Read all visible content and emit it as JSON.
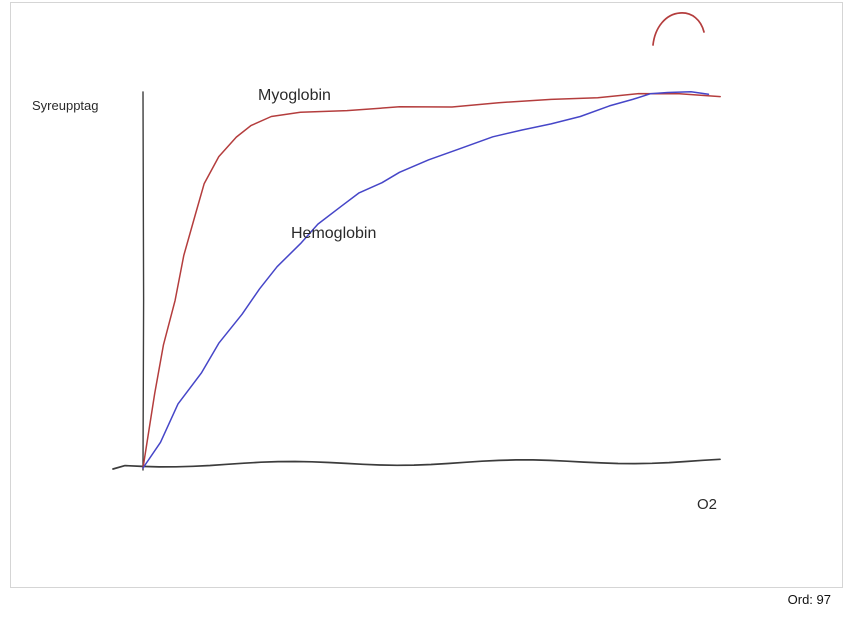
{
  "frame": {
    "background": "#ffffff",
    "border_color": "#d5d5d5"
  },
  "colors": {
    "axis": "#3d3d3d",
    "baseline": "#3c3c3c"
  },
  "footer": {
    "word_count": "Ord: 97"
  },
  "chart_data": {
    "type": "line",
    "title": "",
    "xlabel": "O2",
    "ylabel": "Syreupptag",
    "xlim": [
      0,
      100
    ],
    "ylim": [
      0,
      105
    ],
    "grid": false,
    "legend": "inline-annotations",
    "style": "hand-drawn",
    "series": [
      {
        "name": "Myoglobin",
        "color": "#b43d3d",
        "x": [
          0,
          2,
          3.5,
          5.5,
          7,
          9,
          10.5,
          13,
          16,
          18.5,
          22,
          27,
          35,
          44,
          53,
          61,
          70,
          78,
          85,
          92,
          99
        ],
        "values": [
          0,
          20,
          33,
          45,
          57,
          68,
          76,
          83,
          88,
          91,
          93.5,
          95,
          95.5,
          96,
          96.5,
          97.5,
          98,
          99,
          100,
          99.5,
          99
        ]
      },
      {
        "name": "Hemoglobin",
        "color": "#4646c8",
        "x": [
          0,
          3,
          6,
          10,
          13,
          17,
          20,
          23,
          27,
          30,
          34,
          37,
          41,
          44,
          49,
          54,
          60,
          65,
          70,
          75,
          80,
          84,
          87,
          90,
          94,
          97
        ],
        "values": [
          0,
          7,
          17,
          25,
          33,
          41,
          48,
          54,
          60,
          65,
          69.5,
          73,
          76,
          79,
          82.5,
          85,
          88,
          90,
          92,
          94,
          96.5,
          98,
          99.5,
          100,
          100.5,
          100
        ]
      }
    ]
  }
}
